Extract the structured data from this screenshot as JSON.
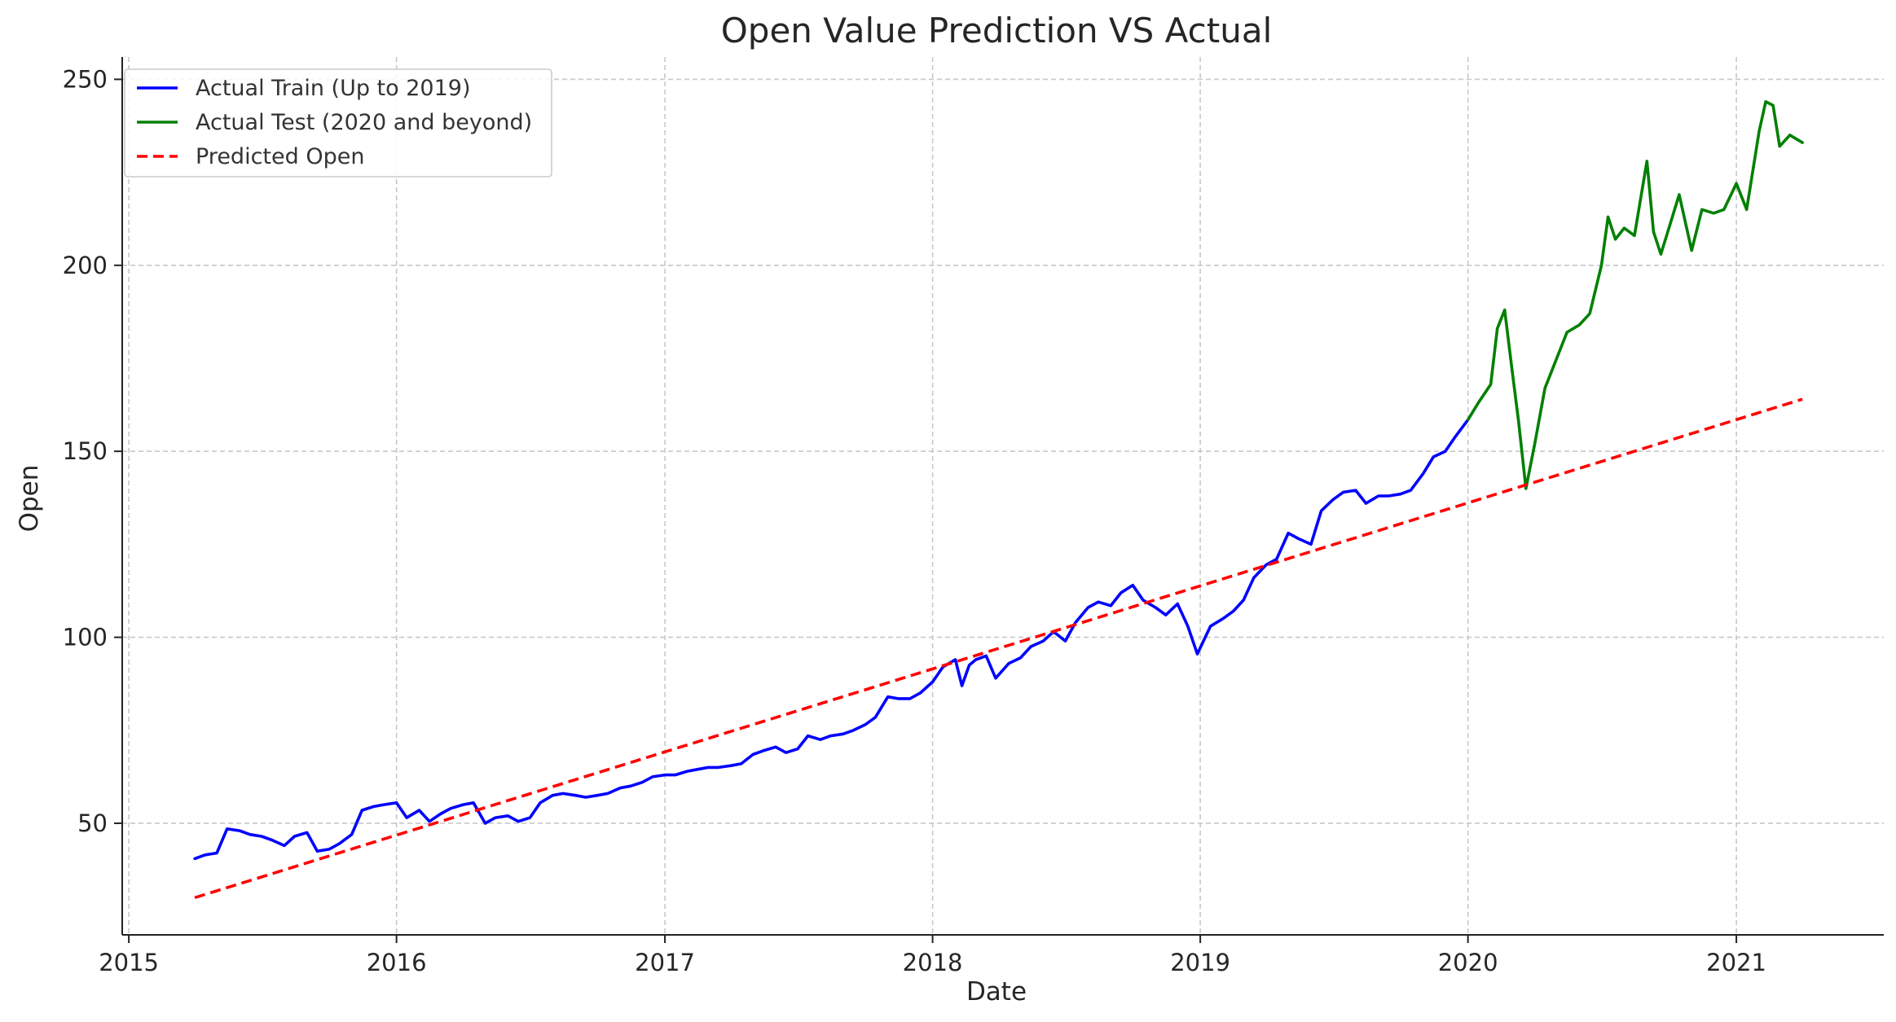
{
  "chart_data": {
    "type": "line",
    "title": "Open Value Prediction VS Actual",
    "xlabel": "Date",
    "ylabel": "Open",
    "xlim": [
      "2014-12-23",
      "2021-07-21"
    ],
    "ylim": [
      20,
      256
    ],
    "x_ticks": [
      "2015",
      "2016",
      "2017",
      "2018",
      "2019",
      "2020",
      "2021"
    ],
    "y_ticks": [
      50,
      100,
      150,
      200,
      250
    ],
    "grid": true,
    "legend_position": "top-left",
    "series": [
      {
        "name": "Actual Train (Up to 2019)",
        "color": "#0000ff",
        "style": "solid",
        "points": [
          [
            "2015-04-01",
            40.5
          ],
          [
            "2015-04-15",
            41.5
          ],
          [
            "2015-05-01",
            42.0
          ],
          [
            "2015-05-15",
            48.5
          ],
          [
            "2015-06-01",
            48.0
          ],
          [
            "2015-06-15",
            47.0
          ],
          [
            "2015-07-01",
            46.5
          ],
          [
            "2015-07-15",
            45.5
          ],
          [
            "2015-08-01",
            44.0
          ],
          [
            "2015-08-15",
            46.5
          ],
          [
            "2015-09-01",
            47.5
          ],
          [
            "2015-09-15",
            42.5
          ],
          [
            "2015-10-01",
            43.0
          ],
          [
            "2015-10-15",
            44.5
          ],
          [
            "2015-11-01",
            47.0
          ],
          [
            "2015-11-15",
            53.5
          ],
          [
            "2015-12-01",
            54.5
          ],
          [
            "2015-12-15",
            55.0
          ],
          [
            "2016-01-01",
            55.5
          ],
          [
            "2016-01-15",
            51.5
          ],
          [
            "2016-02-01",
            53.5
          ],
          [
            "2016-02-15",
            50.5
          ],
          [
            "2016-03-01",
            52.5
          ],
          [
            "2016-03-15",
            54.0
          ],
          [
            "2016-04-01",
            55.0
          ],
          [
            "2016-04-15",
            55.5
          ],
          [
            "2016-05-01",
            50.0
          ],
          [
            "2016-05-15",
            51.5
          ],
          [
            "2016-06-01",
            52.0
          ],
          [
            "2016-06-15",
            50.5
          ],
          [
            "2016-07-01",
            51.5
          ],
          [
            "2016-07-15",
            55.5
          ],
          [
            "2016-08-01",
            57.5
          ],
          [
            "2016-08-15",
            58.0
          ],
          [
            "2016-09-01",
            57.5
          ],
          [
            "2016-09-15",
            57.0
          ],
          [
            "2016-10-01",
            57.5
          ],
          [
            "2016-10-15",
            58.0
          ],
          [
            "2016-11-01",
            59.5
          ],
          [
            "2016-11-15",
            60.0
          ],
          [
            "2016-12-01",
            61.0
          ],
          [
            "2016-12-15",
            62.5
          ],
          [
            "2017-01-01",
            63.0
          ],
          [
            "2017-01-15",
            63.0
          ],
          [
            "2017-02-01",
            64.0
          ],
          [
            "2017-02-15",
            64.5
          ],
          [
            "2017-03-01",
            65.0
          ],
          [
            "2017-03-15",
            65.0
          ],
          [
            "2017-04-01",
            65.5
          ],
          [
            "2017-04-15",
            66.0
          ],
          [
            "2017-05-01",
            68.5
          ],
          [
            "2017-05-15",
            69.5
          ],
          [
            "2017-06-01",
            70.5
          ],
          [
            "2017-06-15",
            69.0
          ],
          [
            "2017-07-01",
            70.0
          ],
          [
            "2017-07-15",
            73.5
          ],
          [
            "2017-08-01",
            72.5
          ],
          [
            "2017-08-15",
            73.5
          ],
          [
            "2017-09-01",
            74.0
          ],
          [
            "2017-09-15",
            75.0
          ],
          [
            "2017-10-01",
            76.5
          ],
          [
            "2017-10-15",
            78.5
          ],
          [
            "2017-11-01",
            84.0
          ],
          [
            "2017-11-15",
            83.5
          ],
          [
            "2017-12-01",
            83.5
          ],
          [
            "2017-12-15",
            85.0
          ],
          [
            "2018-01-01",
            88.0
          ],
          [
            "2018-01-15",
            92.0
          ],
          [
            "2018-02-01",
            94.0
          ],
          [
            "2018-02-10",
            87.0
          ],
          [
            "2018-02-20",
            92.5
          ],
          [
            "2018-03-01",
            94.0
          ],
          [
            "2018-03-15",
            95.0
          ],
          [
            "2018-03-28",
            89.0
          ],
          [
            "2018-04-15",
            93.0
          ],
          [
            "2018-05-01",
            94.5
          ],
          [
            "2018-05-15",
            97.5
          ],
          [
            "2018-06-01",
            99.0
          ],
          [
            "2018-06-15",
            101.5
          ],
          [
            "2018-07-01",
            99.0
          ],
          [
            "2018-07-15",
            104.0
          ],
          [
            "2018-08-01",
            108.0
          ],
          [
            "2018-08-15",
            109.5
          ],
          [
            "2018-09-01",
            108.5
          ],
          [
            "2018-09-15",
            112.0
          ],
          [
            "2018-10-01",
            114.0
          ],
          [
            "2018-10-15",
            110.0
          ],
          [
            "2018-11-01",
            108.0
          ],
          [
            "2018-11-15",
            106.0
          ],
          [
            "2018-12-01",
            109.0
          ],
          [
            "2018-12-15",
            103.0
          ],
          [
            "2018-12-28",
            95.5
          ],
          [
            "2019-01-15",
            103.0
          ],
          [
            "2019-02-01",
            105.0
          ],
          [
            "2019-02-15",
            107.0
          ],
          [
            "2019-03-01",
            110.0
          ],
          [
            "2019-03-15",
            116.0
          ],
          [
            "2019-04-01",
            119.5
          ],
          [
            "2019-04-15",
            121.0
          ],
          [
            "2019-05-01",
            128.0
          ],
          [
            "2019-05-15",
            126.5
          ],
          [
            "2019-06-01",
            125.0
          ],
          [
            "2019-06-15",
            134.0
          ],
          [
            "2019-07-01",
            137.0
          ],
          [
            "2019-07-15",
            139.0
          ],
          [
            "2019-08-01",
            139.5
          ],
          [
            "2019-08-15",
            136.0
          ],
          [
            "2019-09-01",
            138.0
          ],
          [
            "2019-09-15",
            138.0
          ],
          [
            "2019-10-01",
            138.5
          ],
          [
            "2019-10-15",
            139.5
          ],
          [
            "2019-11-01",
            144.0
          ],
          [
            "2019-11-15",
            148.5
          ],
          [
            "2019-12-01",
            150.0
          ],
          [
            "2019-12-15",
            154.0
          ],
          [
            "2020-01-01",
            158.5
          ]
        ]
      },
      {
        "name": "Actual Test (2020 and beyond)",
        "color": "#008000",
        "style": "solid",
        "points": [
          [
            "2020-01-01",
            158.5
          ],
          [
            "2020-01-15",
            163.0
          ],
          [
            "2020-02-01",
            168.0
          ],
          [
            "2020-02-10",
            183.0
          ],
          [
            "2020-02-20",
            188.0
          ],
          [
            "2020-03-01",
            172.0
          ],
          [
            "2020-03-10",
            158.0
          ],
          [
            "2020-03-20",
            140.0
          ],
          [
            "2020-04-01",
            152.0
          ],
          [
            "2020-04-15",
            167.0
          ],
          [
            "2020-05-01",
            175.0
          ],
          [
            "2020-05-15",
            182.0
          ],
          [
            "2020-06-01",
            184.0
          ],
          [
            "2020-06-15",
            187.0
          ],
          [
            "2020-07-01",
            200.0
          ],
          [
            "2020-07-10",
            213.0
          ],
          [
            "2020-07-20",
            207.0
          ],
          [
            "2020-08-01",
            210.0
          ],
          [
            "2020-08-15",
            208.0
          ],
          [
            "2020-09-01",
            228.0
          ],
          [
            "2020-09-10",
            209.0
          ],
          [
            "2020-09-20",
            203.0
          ],
          [
            "2020-10-01",
            210.0
          ],
          [
            "2020-10-15",
            219.0
          ],
          [
            "2020-11-01",
            204.0
          ],
          [
            "2020-11-15",
            215.0
          ],
          [
            "2020-12-01",
            214.0
          ],
          [
            "2020-12-15",
            215.0
          ],
          [
            "2021-01-01",
            222.0
          ],
          [
            "2021-01-15",
            215.0
          ],
          [
            "2021-02-01",
            236.0
          ],
          [
            "2021-02-10",
            244.0
          ],
          [
            "2021-02-20",
            243.0
          ],
          [
            "2021-03-01",
            232.0
          ],
          [
            "2021-03-15",
            235.0
          ],
          [
            "2021-04-01",
            233.0
          ]
        ]
      },
      {
        "name": "Predicted Open",
        "color": "#ff0000",
        "style": "dashed",
        "points": [
          [
            "2015-04-01",
            30.0
          ],
          [
            "2021-04-01",
            164.0
          ]
        ]
      }
    ]
  }
}
